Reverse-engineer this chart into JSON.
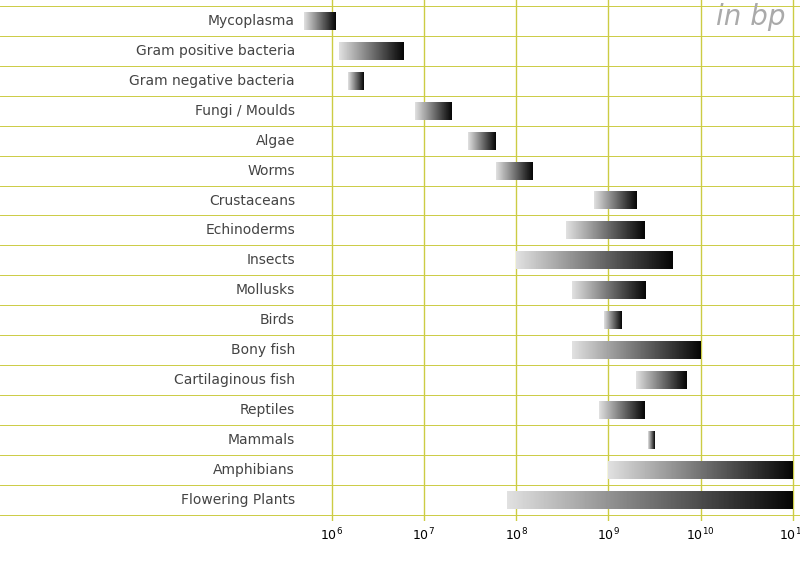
{
  "title": "in bp",
  "categories": [
    "Mycoplasma",
    "Gram positive bacteria",
    "Gram negative bacteria",
    "Fungi / Moulds",
    "Algae",
    "Worms",
    "Crustaceans",
    "Echinoderms",
    "Insects",
    "Mollusks",
    "Birds",
    "Bony fish",
    "Cartilaginous fish",
    "Reptiles",
    "Mammals",
    "Amphibians",
    "Flowering Plants"
  ],
  "xmin": [
    500000.0,
    1200000.0,
    1500000.0,
    8000000.0,
    30000000.0,
    60000000.0,
    700000000.0,
    350000000.0,
    100000000.0,
    400000000.0,
    900000000.0,
    400000000.0,
    2000000000.0,
    800000000.0,
    2700000000.0,
    1000000000.0,
    80000000.0
  ],
  "xmax": [
    1100000.0,
    6000000.0,
    2200000.0,
    20000000.0,
    60000000.0,
    150000000.0,
    2000000000.0,
    2500000000.0,
    5000000000.0,
    2500000000.0,
    1400000000.0,
    10000000000.0,
    7000000000.0,
    2500000000.0,
    3200000000.0,
    100000000000.0,
    100000000000.0
  ],
  "xlim_min": 500000.0,
  "xlim_max": 120000000000.0,
  "background_color": "#ffffff",
  "grid_color": "#cccc44",
  "bar_height": 0.6,
  "label_color": "#444444",
  "title_color": "#aaaaaa",
  "title_fontsize": 20,
  "label_fontsize": 10,
  "tick_fontsize": 9
}
